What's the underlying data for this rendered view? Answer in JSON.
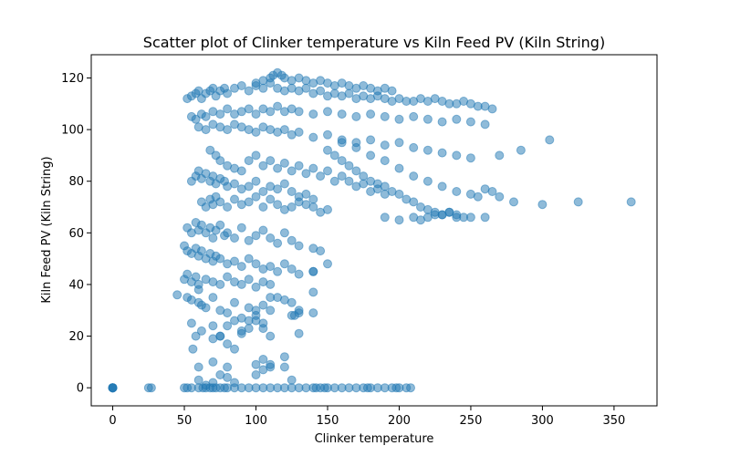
{
  "chart_data": {
    "type": "scatter",
    "title": "Scatter plot of Clinker temperature vs Kiln Feed PV (Kiln String)",
    "xlabel": "Clinker temperature",
    "ylabel": "Kiln Feed PV (Kiln String)",
    "xlim": [
      -15,
      380
    ],
    "ylim": [
      -7,
      129
    ],
    "xticks": [
      0,
      50,
      100,
      150,
      200,
      250,
      300,
      350
    ],
    "yticks": [
      0,
      20,
      40,
      60,
      80,
      100,
      120
    ],
    "xtick_labels": [
      "0",
      "50",
      "100",
      "150",
      "200",
      "250",
      "300",
      "350"
    ],
    "ytick_labels": [
      "0",
      "20",
      "40",
      "60",
      "80",
      "100",
      "120"
    ],
    "marker_color": "#1f77b4",
    "marker_alpha": 0.5,
    "grid": false,
    "legend": "none",
    "x": [
      0,
      0,
      0,
      0,
      0,
      25,
      27,
      50,
      52,
      55,
      60,
      63,
      65,
      68,
      70,
      72,
      75,
      78,
      80,
      85,
      90,
      95,
      100,
      105,
      110,
      115,
      120,
      125,
      130,
      135,
      140,
      142,
      145,
      148,
      150,
      155,
      160,
      165,
      170,
      175,
      178,
      180,
      185,
      190,
      195,
      198,
      200,
      205,
      208,
      52,
      55,
      58,
      60,
      62,
      65,
      68,
      70,
      72,
      75,
      78,
      80,
      85,
      90,
      95,
      100,
      105,
      110,
      115,
      120,
      125,
      130,
      135,
      140,
      145,
      150,
      155,
      160,
      165,
      170,
      175,
      180,
      185,
      190,
      195,
      200,
      205,
      210,
      215,
      220,
      225,
      230,
      235,
      240,
      245,
      250,
      255,
      260,
      265,
      55,
      58,
      62,
      65,
      70,
      75,
      80,
      85,
      90,
      95,
      100,
      105,
      110,
      115,
      120,
      125,
      130,
      140,
      150,
      160,
      170,
      180,
      190,
      200,
      210,
      220,
      230,
      240,
      250,
      260,
      60,
      65,
      70,
      75,
      80,
      85,
      90,
      95,
      100,
      105,
      110,
      115,
      120,
      125,
      130,
      140,
      150,
      160,
      170,
      180,
      190,
      200,
      210,
      220,
      230,
      240,
      250,
      68,
      72,
      75,
      80,
      85,
      90,
      95,
      100,
      105,
      110,
      115,
      120,
      125,
      130,
      135,
      140,
      145,
      150,
      155,
      160,
      165,
      170,
      175,
      180,
      185,
      190,
      55,
      58,
      60,
      62,
      65,
      68,
      70,
      72,
      75,
      78,
      80,
      85,
      90,
      95,
      100,
      105,
      110,
      115,
      120,
      125,
      130,
      135,
      140,
      62,
      65,
      68,
      70,
      72,
      75,
      80,
      85,
      90,
      95,
      100,
      105,
      110,
      115,
      120,
      125,
      130,
      135,
      140,
      145,
      150,
      52,
      55,
      58,
      60,
      62,
      65,
      68,
      70,
      72,
      75,
      78,
      80,
      85,
      90,
      95,
      100,
      105,
      110,
      115,
      120,
      125,
      130,
      140,
      145,
      50,
      52,
      55,
      58,
      60,
      62,
      65,
      68,
      70,
      72,
      75,
      80,
      85,
      90,
      95,
      100,
      105,
      110,
      115,
      120,
      125,
      130,
      140,
      50,
      52,
      55,
      58,
      60,
      65,
      70,
      75,
      80,
      85,
      90,
      95,
      100,
      105,
      110,
      45,
      52,
      55,
      60,
      62,
      65,
      70,
      75,
      80,
      85,
      90,
      95,
      100,
      105,
      110,
      115,
      120,
      125,
      130,
      140,
      55,
      58,
      62,
      70,
      75,
      80,
      85,
      90,
      95,
      100,
      105,
      110,
      120,
      125,
      130,
      140,
      60,
      70,
      75,
      80,
      100,
      105,
      110,
      130,
      60,
      65,
      70,
      80,
      85,
      100,
      105,
      110,
      120,
      125,
      56,
      60,
      70,
      75,
      80,
      85,
      90,
      95,
      100,
      105,
      110,
      127,
      140,
      150,
      100,
      105,
      110,
      112,
      115,
      118,
      120,
      125,
      130,
      135,
      140,
      145,
      150,
      155,
      160,
      165,
      170,
      175,
      180,
      185,
      190,
      195,
      150,
      155,
      160,
      165,
      170,
      175,
      180,
      185,
      190,
      195,
      200,
      205,
      210,
      215,
      220,
      225,
      230,
      235,
      240,
      250,
      260,
      270,
      280,
      300,
      325,
      362,
      160,
      170,
      180,
      190,
      200,
      210,
      220,
      230,
      240,
      250,
      255,
      260,
      265,
      270,
      285,
      305,
      190,
      200,
      210,
      215,
      220,
      225,
      230,
      235,
      240,
      245
    ],
    "y": [
      0,
      0,
      0,
      0,
      0,
      0,
      0,
      0,
      0,
      0,
      0,
      0,
      0,
      0,
      0,
      0,
      0,
      0,
      0,
      0,
      0,
      0,
      0,
      0,
      0,
      0,
      0,
      0,
      0,
      0,
      0,
      0,
      0,
      0,
      0,
      0,
      0,
      0,
      0,
      0,
      0,
      0,
      0,
      0,
      0,
      0,
      0,
      0,
      0,
      112,
      113,
      114,
      115,
      112,
      114,
      115,
      116,
      113,
      115,
      116,
      114,
      116,
      117,
      115,
      117,
      116,
      118,
      116,
      115,
      116,
      115,
      116,
      114,
      115,
      113,
      114,
      113,
      114,
      112,
      113,
      112,
      113,
      112,
      111,
      112,
      111,
      111,
      112,
      111,
      112,
      111,
      110,
      110,
      111,
      110,
      109,
      109,
      108,
      105,
      104,
      106,
      105,
      107,
      106,
      108,
      106,
      107,
      108,
      106,
      108,
      107,
      109,
      107,
      108,
      107,
      106,
      107,
      106,
      105,
      106,
      105,
      104,
      105,
      104,
      103,
      104,
      103,
      102,
      101,
      100,
      102,
      101,
      100,
      102,
      101,
      100,
      99,
      101,
      100,
      99,
      100,
      98,
      99,
      97,
      98,
      96,
      95,
      96,
      94,
      95,
      93,
      92,
      91,
      90,
      89,
      92,
      90,
      88,
      86,
      85,
      84,
      88,
      90,
      86,
      88,
      85,
      87,
      84,
      86,
      83,
      85,
      82,
      84,
      80,
      82,
      80,
      78,
      79,
      76,
      77,
      75,
      80,
      82,
      84,
      81,
      83,
      80,
      82,
      79,
      81,
      80,
      78,
      79,
      77,
      78,
      80,
      76,
      78,
      77,
      79,
      76,
      74,
      75,
      73,
      72,
      70,
      73,
      71,
      74,
      72,
      70,
      73,
      71,
      72,
      74,
      70,
      73,
      71,
      69,
      70,
      72,
      71,
      70,
      68,
      69,
      62,
      60,
      64,
      61,
      63,
      60,
      62,
      58,
      61,
      63,
      59,
      60,
      58,
      62,
      57,
      59,
      61,
      58,
      56,
      60,
      57,
      55,
      54,
      53,
      55,
      53,
      52,
      54,
      51,
      53,
      50,
      52,
      49,
      51,
      50,
      48,
      49,
      47,
      50,
      48,
      46,
      47,
      45,
      48,
      46,
      44,
      45,
      42,
      44,
      41,
      43,
      40,
      42,
      41,
      40,
      43,
      41,
      40,
      42,
      39,
      41,
      40,
      36,
      35,
      34,
      33,
      32,
      31,
      35,
      30,
      29,
      33,
      27,
      31,
      28,
      32,
      30,
      35,
      34,
      33,
      29,
      37,
      25,
      20,
      22,
      24,
      20,
      17,
      26,
      21,
      23,
      26,
      23,
      35,
      12,
      28,
      30,
      29,
      8,
      10,
      5,
      8,
      9,
      11,
      8,
      21,
      3,
      1,
      2,
      4,
      2,
      5,
      7,
      9,
      8,
      3,
      15,
      38,
      19,
      20,
      24,
      15,
      22,
      26,
      30,
      25,
      20,
      28,
      45,
      48,
      118,
      119,
      120,
      121,
      122,
      121,
      120,
      119,
      120,
      119,
      118,
      119,
      118,
      117,
      118,
      117,
      116,
      117,
      116,
      115,
      116,
      115,
      92,
      90,
      88,
      86,
      84,
      82,
      80,
      79,
      78,
      76,
      75,
      73,
      72,
      70,
      69,
      68,
      67,
      68,
      67,
      66,
      66,
      74,
      72,
      71,
      72,
      72,
      95,
      93,
      90,
      88,
      85,
      82,
      80,
      78,
      76,
      75,
      74,
      77,
      76,
      90,
      92,
      96,
      66,
      65,
      66,
      65,
      66,
      67,
      67,
      68,
      66,
      66
    ]
  }
}
